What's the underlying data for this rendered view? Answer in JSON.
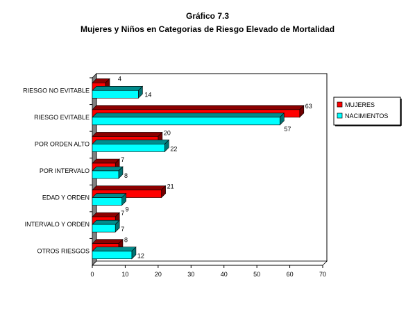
{
  "chart_data": {
    "type": "bar",
    "orientation": "horizontal",
    "style": "3d",
    "title": "Gráfico 7.3",
    "subtitle": "Mujeres y Niños en Categorias de Riesgo Elevado de Mortalidad",
    "categories": [
      "RIESGO NO EVITABLE",
      "RIESGO EVITABLE",
      "POR ORDEN ALTO",
      "POR INTERVALO",
      "EDAD Y ORDEN",
      "INTERVALO Y ORDEN",
      "OTROS RIESGOS"
    ],
    "series": [
      {
        "name": "MUJERES",
        "color": "#ff0000",
        "values": [
          4,
          63,
          20,
          7,
          21,
          7,
          8
        ]
      },
      {
        "name": "NACIMIENTOS",
        "color": "#00ffff",
        "values": [
          14,
          57,
          22,
          8,
          9,
          7,
          12
        ]
      }
    ],
    "xlim": [
      0,
      70
    ],
    "xticks": [
      0,
      10,
      20,
      30,
      40,
      50,
      60,
      70
    ],
    "grid": false,
    "legend": "right"
  }
}
